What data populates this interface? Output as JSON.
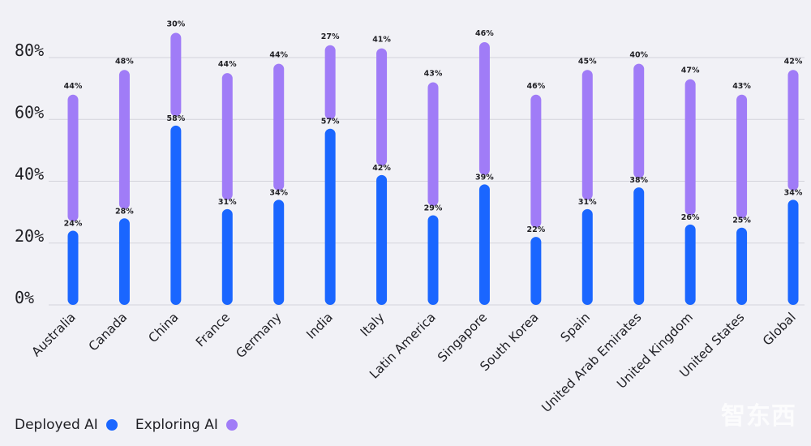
{
  "chart_data": {
    "type": "bar",
    "categories": [
      "Australia",
      "Canada",
      "China",
      "France",
      "Germany",
      "India",
      "Italy",
      "Latin America",
      "Singapore",
      "South Korea",
      "Spain",
      "United Arab Emirates",
      "United Kingdom",
      "United States",
      "Global"
    ],
    "series": [
      {
        "name": "Deployed AI",
        "color": "#1a66ff",
        "values": [
          24,
          28,
          58,
          31,
          34,
          57,
          42,
          29,
          39,
          22,
          31,
          38,
          26,
          25,
          34
        ],
        "labels": [
          "24%",
          "28%",
          "58%",
          "31%",
          "34%",
          "57%",
          "42%",
          "29%",
          "39%",
          "22%",
          "31%",
          "38%",
          "26%",
          "25%",
          "34%"
        ]
      },
      {
        "name": "Exploring AI",
        "color": "#a07cf7",
        "values": [
          44,
          48,
          30,
          44,
          44,
          27,
          41,
          43,
          46,
          46,
          45,
          40,
          47,
          43,
          42
        ],
        "labels": [
          "44%",
          "48%",
          "30%",
          "44%",
          "44%",
          "27%",
          "41%",
          "43%",
          "46%",
          "46%",
          "45%",
          "40%",
          "47%",
          "43%",
          "42%"
        ]
      }
    ],
    "y_ticks": [
      "0%",
      "20%",
      "40%",
      "60%",
      "80%"
    ],
    "y_tick_values": [
      0,
      20,
      40,
      60,
      80
    ],
    "ylim": [
      0,
      80
    ],
    "grid": true,
    "stacked": true,
    "legend_position": "bottom-left"
  },
  "legend": {
    "deployed_label": "Deployed AI",
    "exploring_label": "Exploring AI"
  },
  "watermark": "智东西"
}
